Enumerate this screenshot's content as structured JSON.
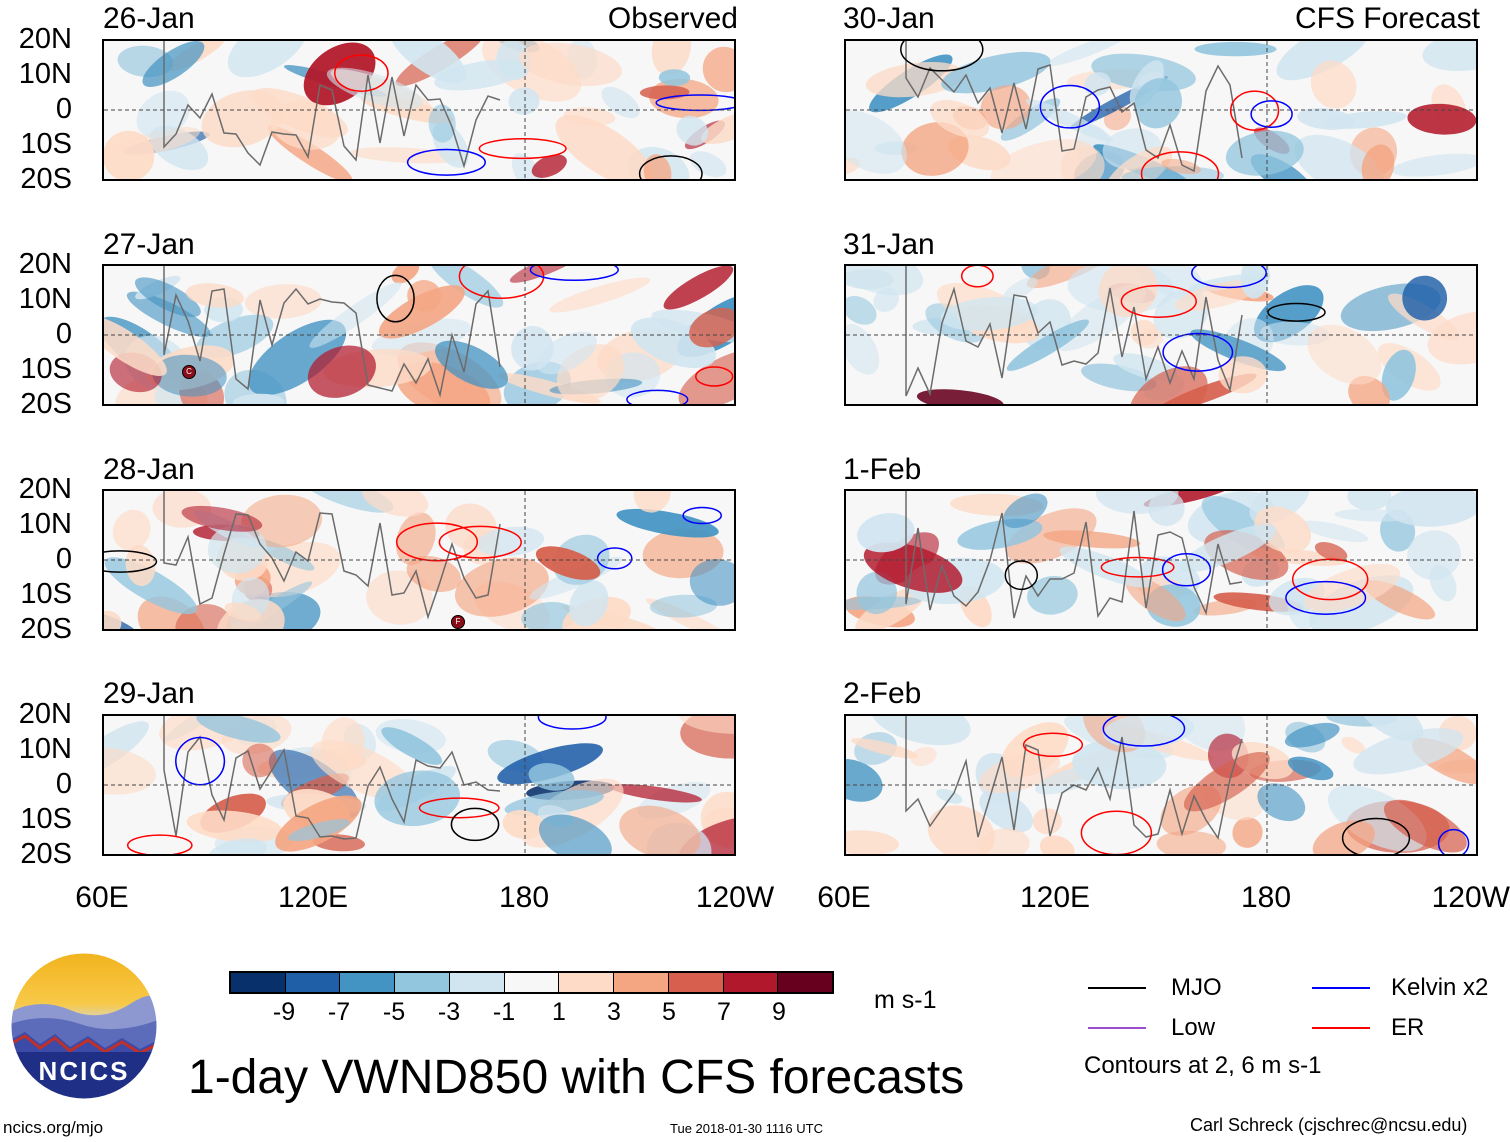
{
  "headers": {
    "left": "Observed",
    "right": "CFS Forecast"
  },
  "panels": {
    "left": [
      "26-Jan",
      "27-Jan",
      "28-Jan",
      "29-Jan"
    ],
    "right": [
      "30-Jan",
      "31-Jan",
      "1-Feb",
      "2-Feb"
    ]
  },
  "lat_labels": [
    "20N",
    "10N",
    "0",
    "10S",
    "20S"
  ],
  "lon_labels": [
    "60E",
    "120E",
    "180",
    "120W"
  ],
  "colorbar": {
    "ticks": [
      "-9",
      "-7",
      "-5",
      "-3",
      "-1",
      "1",
      "3",
      "5",
      "7",
      "9"
    ],
    "colors": [
      "#08306b",
      "#1f5fa8",
      "#4393c3",
      "#92c5de",
      "#d1e5f0",
      "#f7f7f7",
      "#fddbc7",
      "#f4a582",
      "#d6604d",
      "#b2182b",
      "#67001f"
    ],
    "units": "m s-1"
  },
  "legend": {
    "items": [
      {
        "label": "MJO",
        "color": "#000000"
      },
      {
        "label": "Kelvin x2",
        "color": "#0000ff"
      },
      {
        "label": "Low",
        "color": "#9b4fd0"
      },
      {
        "label": "ER",
        "color": "#ff0000"
      }
    ],
    "note": "Contours at 2, 6 m s-1"
  },
  "title": "1-day VWND850 with CFS forecasts",
  "logo": {
    "text": "NCICS"
  },
  "footer": {
    "url": "ncics.org/mjo",
    "timestamp": "Tue 2018-01-30 1116 UTC",
    "author": "Carl Schreck (cjschrec@ncsu.edu)"
  },
  "storm_markers": [
    "C",
    "F"
  ]
}
